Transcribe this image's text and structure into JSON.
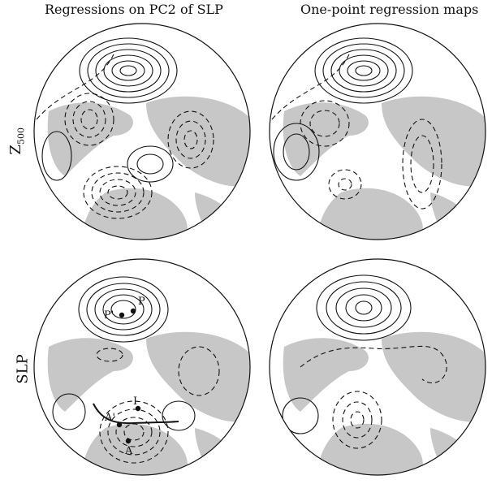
{
  "columns": {
    "left_title": "Regressions on PC2 of SLP",
    "right_title": "One-point regression maps"
  },
  "rows": {
    "top_label_main": "Z",
    "top_label_sub": "500",
    "bottom_label": "SLP"
  },
  "points": {
    "P_prime": "P'",
    "P": "P",
    "A_prime": "A'",
    "A": "A",
    "I": "I"
  }
}
